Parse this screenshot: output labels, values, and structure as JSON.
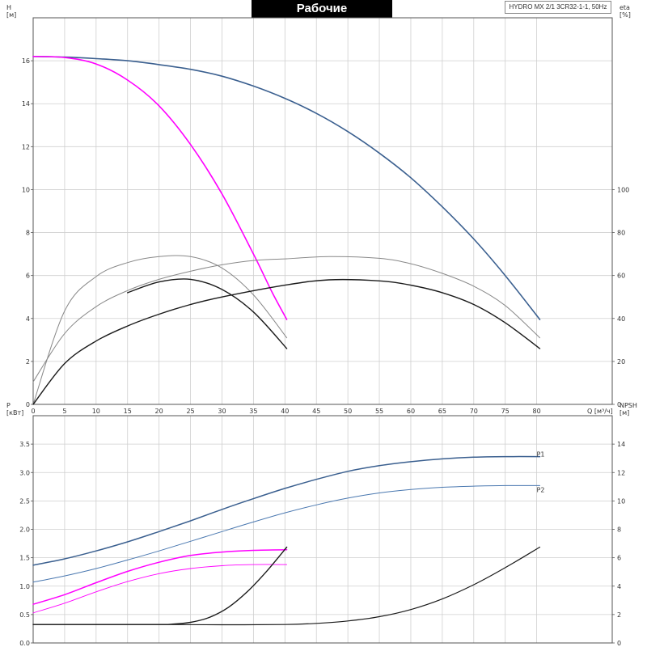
{
  "header": {
    "title": "Рабочие характеристики",
    "model": "HYDRO MX 2/1 3CR32-1-1, 50Hz"
  },
  "chart_data": [
    {
      "type": "line",
      "name": "top",
      "xlabel": "Q [м³/ч]",
      "ylabel_left": "H",
      "ylabel_left_unit": "[м]",
      "ylabel_right": "eta",
      "ylabel_right_unit": "[%]",
      "xlim": [
        0,
        92
      ],
      "ylim_left": [
        0,
        18
      ],
      "ylim_right": [
        0,
        180
      ],
      "x_ticks": [
        0,
        5,
        10,
        15,
        20,
        25,
        30,
        35,
        40,
        45,
        50,
        55,
        60,
        65,
        70,
        75,
        80
      ],
      "y_ticks_left": [
        0,
        2,
        4,
        6,
        8,
        10,
        12,
        14,
        16
      ],
      "y_ticks_right": [
        0,
        20,
        40,
        60,
        80,
        100
      ],
      "grid": true,
      "series": [
        {
          "axis": "left",
          "color": "#3a5f8f",
          "width": 1.6,
          "x": [
            0,
            5,
            10,
            15,
            20,
            25,
            30,
            35,
            40,
            45,
            50,
            55,
            60,
            65,
            70,
            75,
            80.5
          ],
          "y": [
            16.2,
            16.17,
            16.1,
            16.0,
            15.82,
            15.6,
            15.28,
            14.82,
            14.25,
            13.55,
            12.7,
            11.7,
            10.55,
            9.2,
            7.7,
            6.0,
            3.95
          ]
        },
        {
          "axis": "left",
          "color": "#ff00ff",
          "width": 1.6,
          "x": [
            0,
            5,
            10,
            15,
            20,
            25,
            30,
            35,
            38,
            40.3
          ],
          "y": [
            16.2,
            16.15,
            15.85,
            15.1,
            13.9,
            12.1,
            9.8,
            7.0,
            5.2,
            3.95
          ]
        },
        {
          "axis": "left",
          "color": "#1a1a1a",
          "width": 1.4,
          "x": [
            15,
            20,
            25,
            30,
            35,
            40.3
          ],
          "y": [
            5.2,
            5.7,
            5.82,
            5.35,
            4.3,
            2.6
          ]
        },
        {
          "axis": "left",
          "color": "#888888",
          "width": 1.0,
          "x": [
            0,
            5,
            10,
            15,
            20,
            25,
            30,
            35,
            40.3
          ],
          "y": [
            0,
            4.35,
            5.95,
            6.6,
            6.88,
            6.88,
            6.35,
            5.1,
            3.1
          ]
        },
        {
          "axis": "left",
          "color": "#888888",
          "width": 1.0,
          "x": [
            0,
            5,
            10,
            15,
            20,
            25,
            30,
            35,
            40.3
          ],
          "y": [
            1.05,
            3.3,
            4.55,
            5.3,
            5.82,
            6.2,
            6.5,
            6.7,
            6.78
          ]
        },
        {
          "axis": "left",
          "color": "#1a1a1a",
          "width": 1.4,
          "x": [
            0,
            5,
            10,
            15,
            20,
            25,
            30,
            40,
            47,
            55,
            60,
            65,
            70,
            75,
            80.5
          ],
          "y": [
            0,
            1.9,
            2.95,
            3.65,
            4.2,
            4.65,
            5.0,
            5.55,
            5.8,
            5.75,
            5.55,
            5.2,
            4.65,
            3.8,
            2.6
          ]
        },
        {
          "axis": "left",
          "color": "#888888",
          "width": 1.0,
          "x": [
            40.3,
            47,
            55,
            60,
            65,
            70,
            75,
            80.5
          ],
          "y": [
            6.78,
            6.88,
            6.8,
            6.55,
            6.1,
            5.5,
            4.6,
            3.1
          ]
        }
      ]
    },
    {
      "type": "line",
      "name": "bottom",
      "ylabel_left": "P",
      "ylabel_left_unit": "[кВт]",
      "ylabel_right": "NPSH",
      "ylabel_right_unit": "[м]",
      "xlim": [
        0,
        92
      ],
      "ylim_left": [
        0,
        4
      ],
      "ylim_right": [
        0,
        16
      ],
      "y_ticks_left": [
        0,
        0.5,
        1.0,
        1.5,
        2.0,
        2.5,
        3.0,
        3.5
      ],
      "y_ticks_left_labels": [
        "0.0",
        "0.5",
        "1.0",
        "1.5",
        "2.0",
        "2.5",
        "3.0",
        "3.5"
      ],
      "y_ticks_right": [
        0,
        2,
        4,
        6,
        8,
        10,
        12,
        14
      ],
      "grid": true,
      "series": [
        {
          "name": "P1",
          "axis": "left",
          "color": "#3a5f8f",
          "width": 1.5,
          "x": [
            0,
            5,
            10,
            15,
            20,
            25,
            30,
            35,
            40,
            45,
            50,
            55,
            60,
            65,
            70,
            75,
            80.5
          ],
          "y": [
            1.37,
            1.48,
            1.62,
            1.78,
            1.96,
            2.15,
            2.35,
            2.54,
            2.72,
            2.88,
            3.02,
            3.12,
            3.19,
            3.24,
            3.27,
            3.28,
            3.28
          ]
        },
        {
          "name": "P2",
          "axis": "left",
          "color": "#4a78b0",
          "width": 1.0,
          "x": [
            0,
            5,
            10,
            15,
            20,
            25,
            30,
            35,
            40,
            45,
            50,
            55,
            60,
            65,
            70,
            75,
            80.5
          ],
          "y": [
            1.07,
            1.18,
            1.31,
            1.46,
            1.62,
            1.79,
            1.96,
            2.13,
            2.29,
            2.43,
            2.55,
            2.64,
            2.7,
            2.74,
            2.76,
            2.77,
            2.77
          ]
        },
        {
          "axis": "left",
          "color": "#ff00ff",
          "width": 1.5,
          "x": [
            0,
            5,
            10,
            15,
            20,
            25,
            30,
            35,
            40.3
          ],
          "y": [
            0.68,
            0.85,
            1.06,
            1.26,
            1.42,
            1.54,
            1.6,
            1.63,
            1.64
          ]
        },
        {
          "axis": "left",
          "color": "#ff00ff",
          "width": 0.9,
          "x": [
            0,
            5,
            10,
            15,
            20,
            25,
            30,
            35,
            40.3
          ],
          "y": [
            0.53,
            0.7,
            0.9,
            1.08,
            1.22,
            1.31,
            1.36,
            1.38,
            1.38
          ]
        },
        {
          "axis": "right",
          "color": "#1a1a1a",
          "width": 1.4,
          "x": [
            0,
            10,
            20,
            22,
            25,
            28,
            31,
            34,
            37,
            40.3
          ],
          "y": [
            1.3,
            1.3,
            1.3,
            1.32,
            1.45,
            1.8,
            2.5,
            3.6,
            5.0,
            6.75
          ]
        },
        {
          "axis": "right",
          "color": "#1a1a1a",
          "width": 1.2,
          "x": [
            0,
            10,
            20,
            30,
            40,
            45,
            50,
            55,
            60,
            65,
            70,
            75,
            80.5
          ],
          "y": [
            1.3,
            1.3,
            1.3,
            1.28,
            1.3,
            1.38,
            1.55,
            1.85,
            2.35,
            3.1,
            4.1,
            5.3,
            6.75
          ]
        }
      ]
    }
  ]
}
